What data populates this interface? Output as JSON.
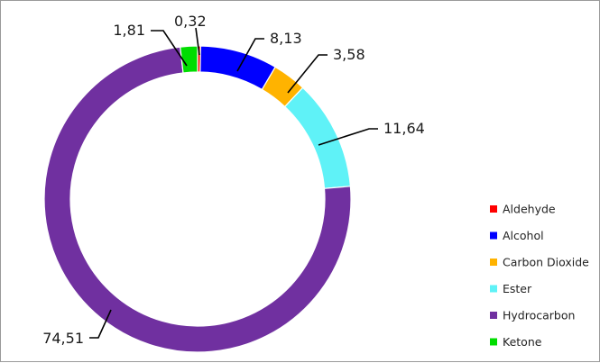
{
  "chart_data": {
    "type": "pie",
    "variant": "donut",
    "title": "",
    "categories": [
      "Aldehyde",
      "Alcohol",
      "Carbon Dioxide",
      "Ester",
      "Hydrocarbon",
      "Ketone"
    ],
    "values": [
      0.32,
      8.13,
      3.58,
      11.64,
      74.51,
      1.81
    ],
    "value_labels": [
      "0,32",
      "8,13",
      "3,58",
      "11,64",
      "74,51",
      "1,81"
    ],
    "colors": [
      "#ff0000",
      "#0000ff",
      "#ffb300",
      "#5ff2f7",
      "#7030a0",
      "#00dd00"
    ],
    "legend_position": "right"
  }
}
